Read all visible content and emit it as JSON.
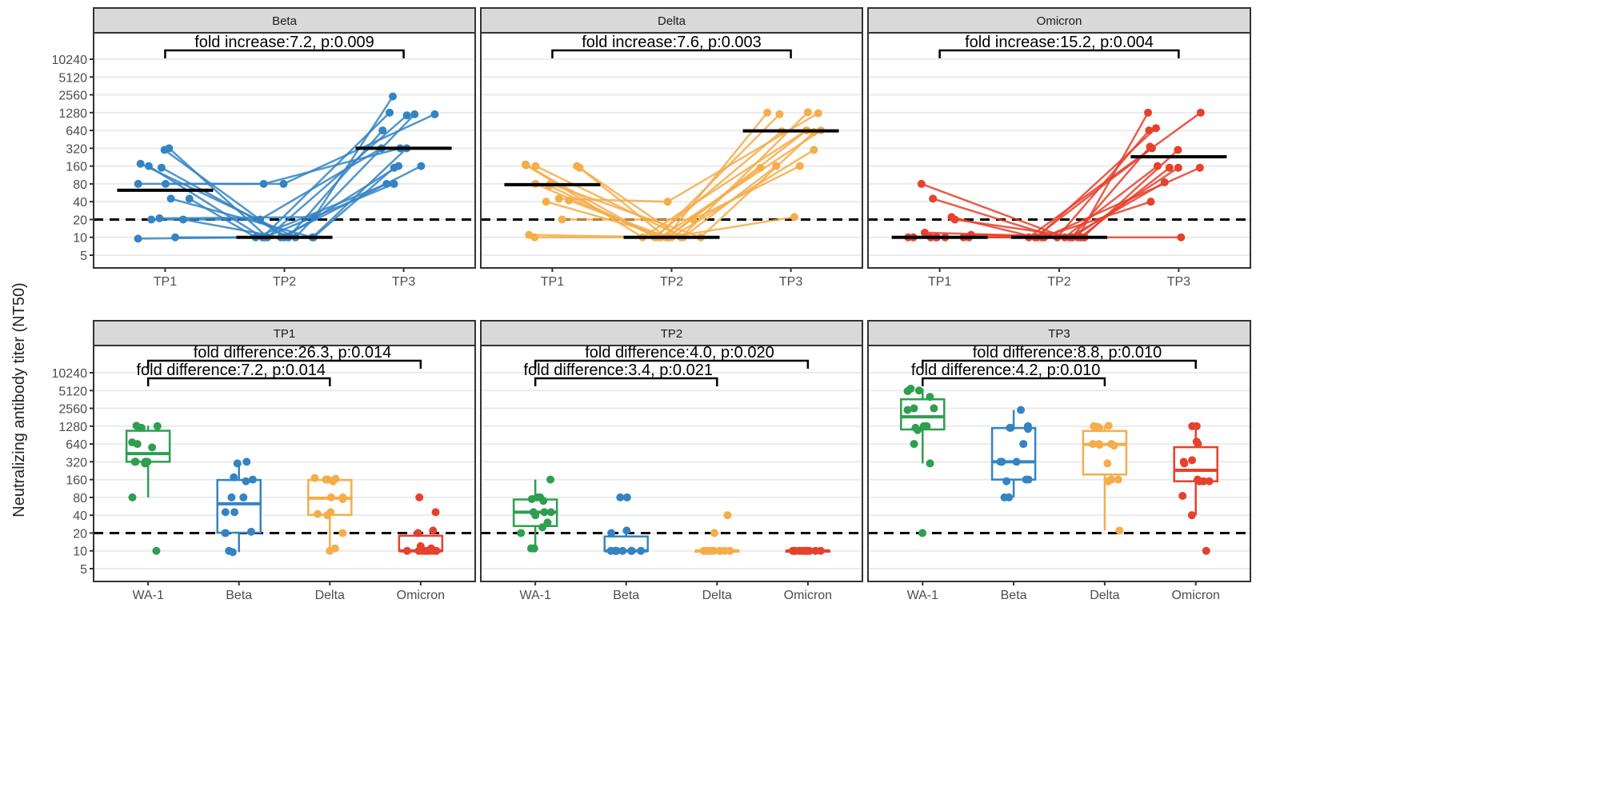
{
  "chart_data": {
    "type": "scatter",
    "ylabel": "Neutralizing antibody titer (NT50)",
    "y_scale": "log2",
    "y_ticks": [
      "5",
      "10",
      "20",
      "40",
      "80",
      "160",
      "320",
      "640",
      "1280",
      "2560",
      "5120",
      "10240"
    ],
    "threshold_line": 20,
    "grid": true,
    "colors": {
      "WA-1": "#2e9e4f",
      "Beta": "#3484c3",
      "Delta": "#f5ad4a",
      "Omicron": "#e5412d"
    },
    "timepoints": [
      "TP1",
      "TP2",
      "TP3"
    ],
    "variants": [
      "WA-1",
      "Beta",
      "Delta",
      "Omicron"
    ],
    "titers": {
      "WA-1": {
        "TP1": [
          1200,
          1200,
          1280,
          1300,
          640,
          680,
          560,
          320,
          300,
          320,
          320,
          320,
          80,
          10
        ],
        "TP2": [
          160,
          80,
          80,
          75,
          70,
          45,
          40,
          45,
          30,
          25,
          20,
          11,
          11,
          45
        ],
        "TP3": [
          5120,
          5000,
          5500,
          4000,
          2560,
          2400,
          1280,
          1200,
          1100,
          640,
          300,
          20,
          2560,
          1280
        ]
      },
      "Beta": {
        "TP1": [
          300,
          320,
          175,
          160,
          150,
          80,
          80,
          45,
          45,
          21,
          20,
          20,
          10,
          9.5
        ],
        "TP2": [
          10,
          10,
          10,
          10,
          10,
          80,
          80,
          10,
          10,
          22,
          20,
          10,
          10,
          10
        ],
        "TP3": [
          160,
          1150,
          1200,
          1280,
          640,
          1200,
          320,
          80,
          320,
          2400,
          320,
          160,
          150,
          80
        ]
      },
      "Delta": {
        "TP1": [
          170,
          150,
          160,
          160,
          80,
          80,
          45,
          40,
          42,
          20,
          11,
          10,
          75,
          165
        ],
        "TP2": [
          10,
          10,
          10,
          10,
          10,
          10,
          40,
          10,
          10,
          20,
          10,
          10,
          10,
          10
        ],
        "TP3": [
          640,
          1280,
          160,
          1300,
          600,
          640,
          1250,
          300,
          640,
          160,
          22,
          150,
          1200,
          620
        ]
      },
      "Omicron": {
        "TP1": [
          80,
          45,
          22,
          20,
          12,
          10,
          10,
          10,
          10,
          10,
          10,
          11,
          10,
          10
        ],
        "TP2": [
          10,
          10,
          10,
          10,
          10,
          10,
          10,
          10,
          10,
          10,
          10,
          10,
          10,
          10
        ],
        "TP3": [
          160,
          640,
          320,
          1280,
          10,
          150,
          1280,
          700,
          150,
          340,
          85,
          300,
          40,
          150
        ]
      }
    },
    "top_panels": [
      {
        "title": "Beta",
        "variant": "Beta",
        "annotation": "fold increase:7.2, p:0.009"
      },
      {
        "title": "Delta",
        "variant": "Delta",
        "annotation": "fold increase:7.6, p:0.003"
      },
      {
        "title": "Omicron",
        "variant": "Omicron",
        "annotation": "fold increase:15.2, p:0.004"
      }
    ],
    "bottom_panels": [
      {
        "title": "TP1",
        "timepoint": "TP1",
        "annotation_omicron": "fold difference:26.3,  p:0.014",
        "annotation_delta": "fold difference:7.2,  p:0.014"
      },
      {
        "title": "TP2",
        "timepoint": "TP2",
        "annotation_omicron": "fold difference:4.0,  p:0.020",
        "annotation_delta": "fold difference:3.4,  p:0.021"
      },
      {
        "title": "TP3",
        "timepoint": "TP3",
        "annotation_omicron": "fold difference:8.8,  p:0.010",
        "annotation_delta": "fold difference:4.2,  p:0.010"
      }
    ]
  }
}
